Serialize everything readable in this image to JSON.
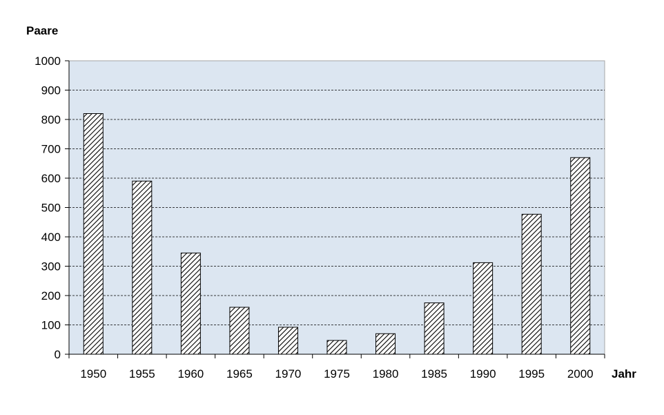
{
  "chart_data": {
    "type": "bar",
    "ylabel": "Paare",
    "xlabel": "Jahr",
    "categories": [
      "1950",
      "1955",
      "1960",
      "1965",
      "1970",
      "1975",
      "1980",
      "1985",
      "1990",
      "1995",
      "2000"
    ],
    "values": [
      820,
      590,
      345,
      160,
      92,
      47,
      70,
      175,
      312,
      477,
      670
    ],
    "ylim": [
      0,
      1000
    ],
    "yticks": [
      "0",
      "100",
      "200",
      "300",
      "400",
      "500",
      "600",
      "700",
      "800",
      "900",
      "1000"
    ],
    "grid": true,
    "legend": "none",
    "colors": {
      "plot_background": "#dce6f1",
      "bar_stroke": "#000000",
      "bar_hatch": "#000000",
      "grid": "#000000"
    }
  }
}
